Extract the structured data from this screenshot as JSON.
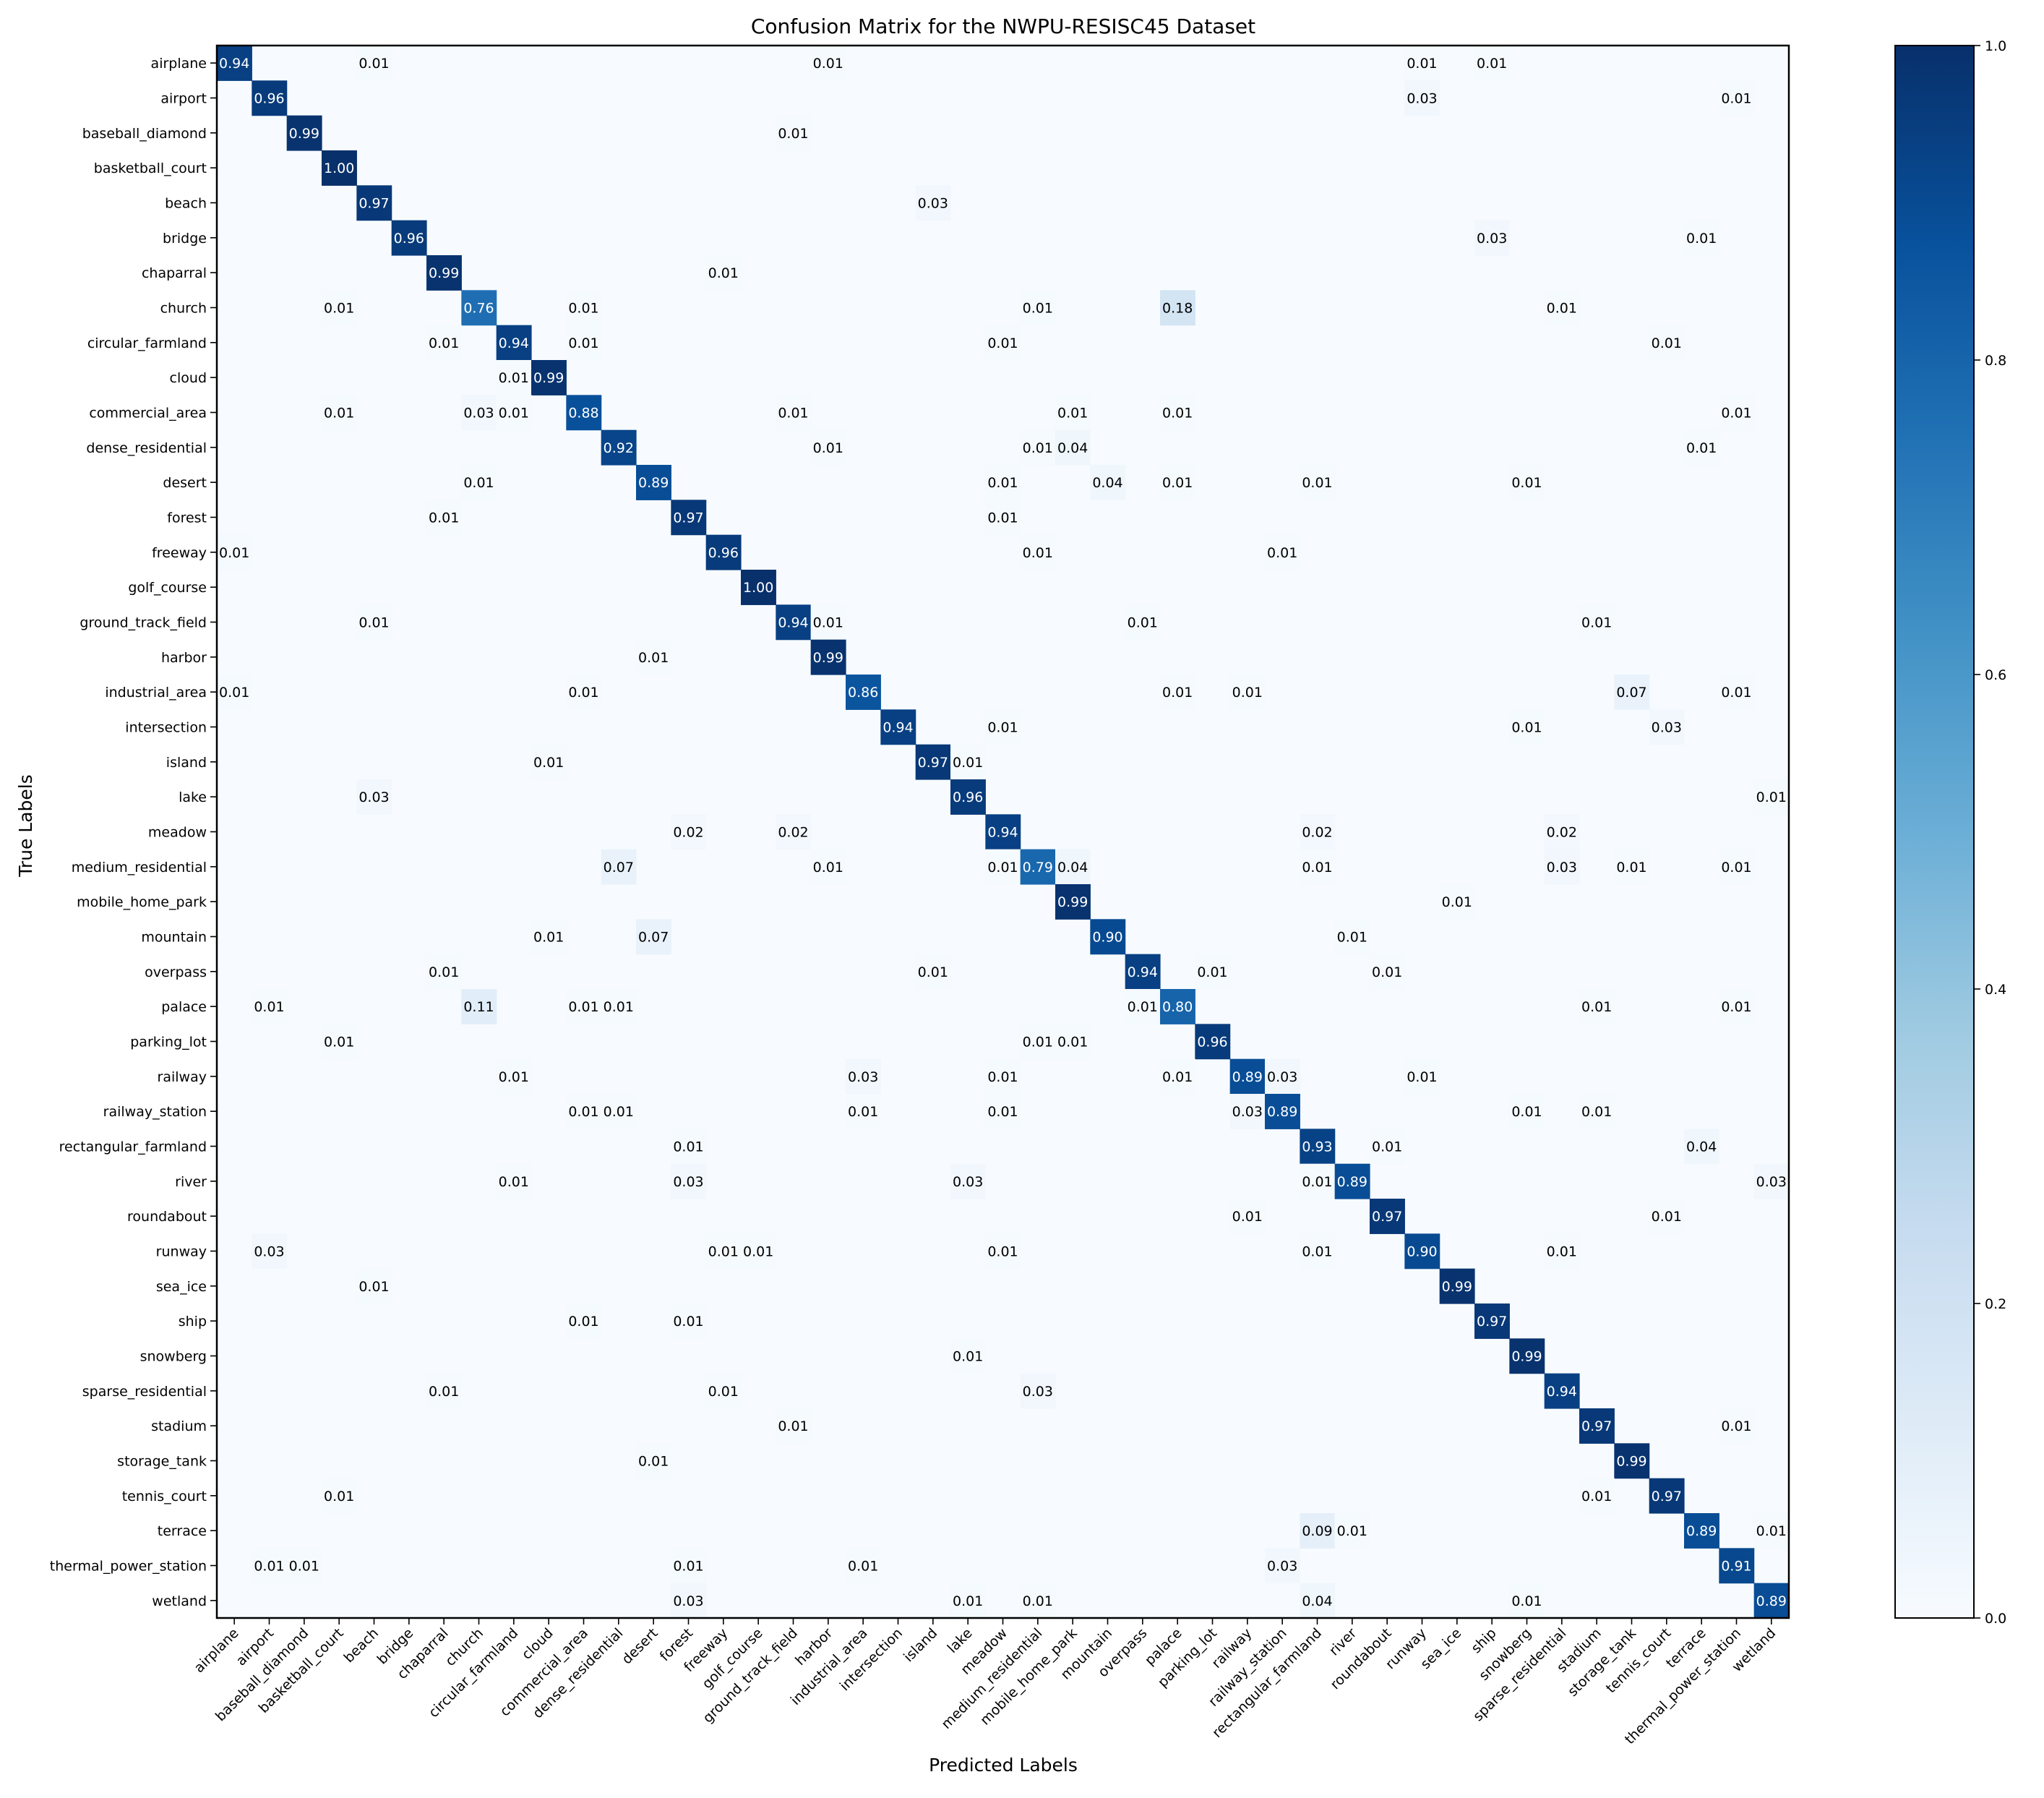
{
  "chart_data": {
    "type": "heatmap",
    "title": "Confusion Matrix for the NWPU-RESISC45 Dataset",
    "xlabel": "Predicted Labels",
    "ylabel": "True Labels",
    "labels": [
      "airplane",
      "airport",
      "baseball_diamond",
      "basketball_court",
      "beach",
      "bridge",
      "chaparral",
      "church",
      "circular_farmland",
      "cloud",
      "commercial_area",
      "dense_residential",
      "desert",
      "forest",
      "freeway",
      "golf_course",
      "ground_track_field",
      "harbor",
      "industrial_area",
      "intersection",
      "island",
      "lake",
      "meadow",
      "medium_residential",
      "mobile_home_park",
      "mountain",
      "overpass",
      "palace",
      "parking_lot",
      "railway",
      "railway_station",
      "rectangular_farmland",
      "river",
      "roundabout",
      "runway",
      "sea_ice",
      "ship",
      "snowberg",
      "sparse_residential",
      "stadium",
      "storage_tank",
      "tennis_court",
      "terrace",
      "thermal_power_station",
      "wetland"
    ],
    "cells": [
      [
        0,
        0,
        0.94
      ],
      [
        0,
        4,
        0.01
      ],
      [
        0,
        17,
        0.01
      ],
      [
        0,
        34,
        0.01
      ],
      [
        0,
        36,
        0.01
      ],
      [
        1,
        1,
        0.96
      ],
      [
        1,
        34,
        0.03
      ],
      [
        1,
        43,
        0.01
      ],
      [
        2,
        2,
        0.99
      ],
      [
        2,
        16,
        0.01
      ],
      [
        3,
        3,
        1.0
      ],
      [
        4,
        4,
        0.97
      ],
      [
        4,
        20,
        0.03
      ],
      [
        5,
        5,
        0.96
      ],
      [
        5,
        36,
        0.03
      ],
      [
        5,
        42,
        0.01
      ],
      [
        6,
        6,
        0.99
      ],
      [
        6,
        14,
        0.01
      ],
      [
        7,
        3,
        0.01
      ],
      [
        7,
        7,
        0.76
      ],
      [
        7,
        10,
        0.01
      ],
      [
        7,
        23,
        0.01
      ],
      [
        7,
        27,
        0.18
      ],
      [
        7,
        38,
        0.01
      ],
      [
        8,
        6,
        0.01
      ],
      [
        8,
        8,
        0.94
      ],
      [
        8,
        10,
        0.01
      ],
      [
        8,
        22,
        0.01
      ],
      [
        8,
        41,
        0.01
      ],
      [
        9,
        8,
        0.01
      ],
      [
        9,
        9,
        0.99
      ],
      [
        10,
        3,
        0.01
      ],
      [
        10,
        7,
        0.03
      ],
      [
        10,
        8,
        0.01
      ],
      [
        10,
        10,
        0.88
      ],
      [
        10,
        16,
        0.01
      ],
      [
        10,
        24,
        0.01
      ],
      [
        10,
        27,
        0.01
      ],
      [
        10,
        43,
        0.01
      ],
      [
        11,
        11,
        0.92
      ],
      [
        11,
        17,
        0.01
      ],
      [
        11,
        23,
        0.01
      ],
      [
        11,
        24,
        0.04
      ],
      [
        11,
        42,
        0.01
      ],
      [
        12,
        7,
        0.01
      ],
      [
        12,
        12,
        0.89
      ],
      [
        12,
        22,
        0.01
      ],
      [
        12,
        25,
        0.04
      ],
      [
        12,
        27,
        0.01
      ],
      [
        12,
        31,
        0.01
      ],
      [
        12,
        37,
        0.01
      ],
      [
        13,
        6,
        0.01
      ],
      [
        13,
        13,
        0.97
      ],
      [
        13,
        22,
        0.01
      ],
      [
        14,
        0,
        0.01
      ],
      [
        14,
        14,
        0.96
      ],
      [
        14,
        23,
        0.01
      ],
      [
        14,
        30,
        0.01
      ],
      [
        15,
        15,
        1.0
      ],
      [
        16,
        4,
        0.01
      ],
      [
        16,
        16,
        0.94
      ],
      [
        16,
        17,
        0.01
      ],
      [
        16,
        26,
        0.01
      ],
      [
        16,
        39,
        0.01
      ],
      [
        17,
        12,
        0.01
      ],
      [
        17,
        17,
        0.99
      ],
      [
        18,
        0,
        0.01
      ],
      [
        18,
        10,
        0.01
      ],
      [
        18,
        18,
        0.86
      ],
      [
        18,
        27,
        0.01
      ],
      [
        18,
        29,
        0.01
      ],
      [
        18,
        40,
        0.07
      ],
      [
        18,
        43,
        0.01
      ],
      [
        19,
        19,
        0.94
      ],
      [
        19,
        22,
        0.01
      ],
      [
        19,
        37,
        0.01
      ],
      [
        19,
        41,
        0.03
      ],
      [
        20,
        9,
        0.01
      ],
      [
        20,
        20,
        0.97
      ],
      [
        20,
        21,
        0.01
      ],
      [
        21,
        4,
        0.03
      ],
      [
        21,
        21,
        0.96
      ],
      [
        21,
        44,
        0.01
      ],
      [
        22,
        13,
        0.02
      ],
      [
        22,
        16,
        0.02
      ],
      [
        22,
        22,
        0.94
      ],
      [
        22,
        31,
        0.02
      ],
      [
        22,
        38,
        0.02
      ],
      [
        23,
        11,
        0.07
      ],
      [
        23,
        17,
        0.01
      ],
      [
        23,
        22,
        0.01
      ],
      [
        23,
        23,
        0.79
      ],
      [
        23,
        24,
        0.04
      ],
      [
        23,
        31,
        0.01
      ],
      [
        23,
        38,
        0.03
      ],
      [
        23,
        40,
        0.01
      ],
      [
        23,
        43,
        0.01
      ],
      [
        24,
        24,
        0.99
      ],
      [
        24,
        35,
        0.01
      ],
      [
        25,
        9,
        0.01
      ],
      [
        25,
        12,
        0.07
      ],
      [
        25,
        25,
        0.9
      ],
      [
        25,
        32,
        0.01
      ],
      [
        26,
        6,
        0.01
      ],
      [
        26,
        20,
        0.01
      ],
      [
        26,
        26,
        0.94
      ],
      [
        26,
        28,
        0.01
      ],
      [
        26,
        33,
        0.01
      ],
      [
        27,
        1,
        0.01
      ],
      [
        27,
        7,
        0.11
      ],
      [
        27,
        10,
        0.01
      ],
      [
        27,
        11,
        0.01
      ],
      [
        27,
        26,
        0.01
      ],
      [
        27,
        27,
        0.8
      ],
      [
        27,
        39,
        0.01
      ],
      [
        27,
        43,
        0.01
      ],
      [
        28,
        3,
        0.01
      ],
      [
        28,
        23,
        0.01
      ],
      [
        28,
        24,
        0.01
      ],
      [
        28,
        28,
        0.96
      ],
      [
        29,
        8,
        0.01
      ],
      [
        29,
        18,
        0.03
      ],
      [
        29,
        22,
        0.01
      ],
      [
        29,
        27,
        0.01
      ],
      [
        29,
        29,
        0.89
      ],
      [
        29,
        30,
        0.03
      ],
      [
        29,
        34,
        0.01
      ],
      [
        30,
        10,
        0.01
      ],
      [
        30,
        11,
        0.01
      ],
      [
        30,
        18,
        0.01
      ],
      [
        30,
        22,
        0.01
      ],
      [
        30,
        29,
        0.03
      ],
      [
        30,
        30,
        0.89
      ],
      [
        30,
        37,
        0.01
      ],
      [
        30,
        39,
        0.01
      ],
      [
        31,
        13,
        0.01
      ],
      [
        31,
        31,
        0.93
      ],
      [
        31,
        33,
        0.01
      ],
      [
        31,
        42,
        0.04
      ],
      [
        32,
        8,
        0.01
      ],
      [
        32,
        13,
        0.03
      ],
      [
        32,
        21,
        0.03
      ],
      [
        32,
        31,
        0.01
      ],
      [
        32,
        32,
        0.89
      ],
      [
        32,
        44,
        0.03
      ],
      [
        33,
        29,
        0.01
      ],
      [
        33,
        33,
        0.97
      ],
      [
        33,
        41,
        0.01
      ],
      [
        34,
        1,
        0.03
      ],
      [
        34,
        14,
        0.01
      ],
      [
        34,
        15,
        0.01
      ],
      [
        34,
        22,
        0.01
      ],
      [
        34,
        31,
        0.01
      ],
      [
        34,
        34,
        0.9
      ],
      [
        34,
        38,
        0.01
      ],
      [
        35,
        4,
        0.01
      ],
      [
        35,
        35,
        0.99
      ],
      [
        36,
        10,
        0.01
      ],
      [
        36,
        13,
        0.01
      ],
      [
        36,
        36,
        0.97
      ],
      [
        37,
        21,
        0.01
      ],
      [
        37,
        37,
        0.99
      ],
      [
        38,
        6,
        0.01
      ],
      [
        38,
        14,
        0.01
      ],
      [
        38,
        23,
        0.03
      ],
      [
        38,
        38,
        0.94
      ],
      [
        39,
        16,
        0.01
      ],
      [
        39,
        39,
        0.97
      ],
      [
        39,
        43,
        0.01
      ],
      [
        40,
        12,
        0.01
      ],
      [
        40,
        40,
        0.99
      ],
      [
        41,
        3,
        0.01
      ],
      [
        41,
        39,
        0.01
      ],
      [
        41,
        41,
        0.97
      ],
      [
        42,
        31,
        0.09
      ],
      [
        42,
        32,
        0.01
      ],
      [
        42,
        42,
        0.89
      ],
      [
        42,
        44,
        0.01
      ],
      [
        43,
        1,
        0.01
      ],
      [
        43,
        2,
        0.01
      ],
      [
        43,
        13,
        0.01
      ],
      [
        43,
        18,
        0.01
      ],
      [
        43,
        30,
        0.03
      ],
      [
        43,
        43,
        0.91
      ],
      [
        44,
        13,
        0.03
      ],
      [
        44,
        21,
        0.01
      ],
      [
        44,
        23,
        0.01
      ],
      [
        44,
        31,
        0.04
      ],
      [
        44,
        37,
        0.01
      ],
      [
        44,
        44,
        0.89
      ]
    ],
    "value_range": [
      0.0,
      1.0
    ],
    "colorbar": {
      "colormap": "Blues",
      "ticks": [
        0.0,
        0.2,
        0.4,
        0.6,
        0.8,
        1.0
      ],
      "tick_labels": [
        "0.0",
        "0.2",
        "0.4",
        "0.6",
        "0.8",
        "1.0"
      ]
    },
    "colors": {
      "low": "#f7fbff",
      "high": "#08306b"
    }
  }
}
